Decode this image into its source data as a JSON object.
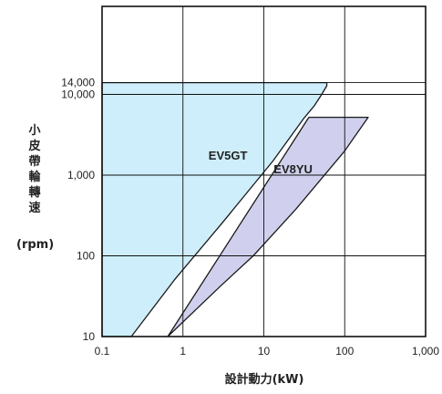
{
  "chart_data": {
    "type": "area",
    "xscale": "log",
    "yscale": "log",
    "xlim": [
      0.1,
      1000
    ],
    "ylim": [
      10,
      20000
    ],
    "grid": true,
    "x_ticks": [
      {
        "value": 0.1,
        "label": "0.1"
      },
      {
        "value": 1,
        "label": "1"
      },
      {
        "value": 10,
        "label": "10"
      },
      {
        "value": 100,
        "label": "100"
      },
      {
        "value": 1000,
        "label": "1,000"
      }
    ],
    "y_ticks": [
      {
        "value": 10,
        "label": "10"
      },
      {
        "value": 100,
        "label": "100"
      },
      {
        "value": 1000,
        "label": "1,000"
      },
      {
        "value": 10000,
        "label": "10,000"
      },
      {
        "value": 14000,
        "label": "14,000"
      }
    ],
    "xlabel": "設計動力(kW)",
    "ylabel_chars": [
      "小",
      "皮",
      "帶",
      "輪",
      "轉",
      "速"
    ],
    "ylabel_unit": "(rpm)",
    "colors": {
      "ev5gt_fill": "#cdeefa",
      "ev8yu_fill": "#d0d0ee",
      "outline": "#1a1a1a",
      "grid": "#111111"
    },
    "series": [
      {
        "name": "EV5GT",
        "label": "EV5GT",
        "label_at": [
          3.6,
          1550
        ],
        "polygon": [
          [
            0.1,
            10
          ],
          [
            0.1,
            14000
          ],
          [
            60,
            14000
          ],
          [
            60,
            12800
          ],
          [
            52,
            10000
          ],
          [
            42,
            7200
          ],
          [
            31,
            5000
          ],
          [
            13,
            1500
          ],
          [
            3,
            250
          ],
          [
            0.78,
            50
          ],
          [
            0.23,
            10
          ]
        ]
      },
      {
        "name": "EV8YU",
        "label": "EV8YU",
        "label_at": [
          23,
          1050
        ],
        "polygon": [
          [
            0.65,
            10
          ],
          [
            36,
            5200
          ],
          [
            195,
            5200
          ],
          [
            100,
            2000
          ],
          [
            25,
            380
          ],
          [
            7.4,
            100
          ],
          [
            2.9,
            42
          ]
        ]
      }
    ]
  }
}
